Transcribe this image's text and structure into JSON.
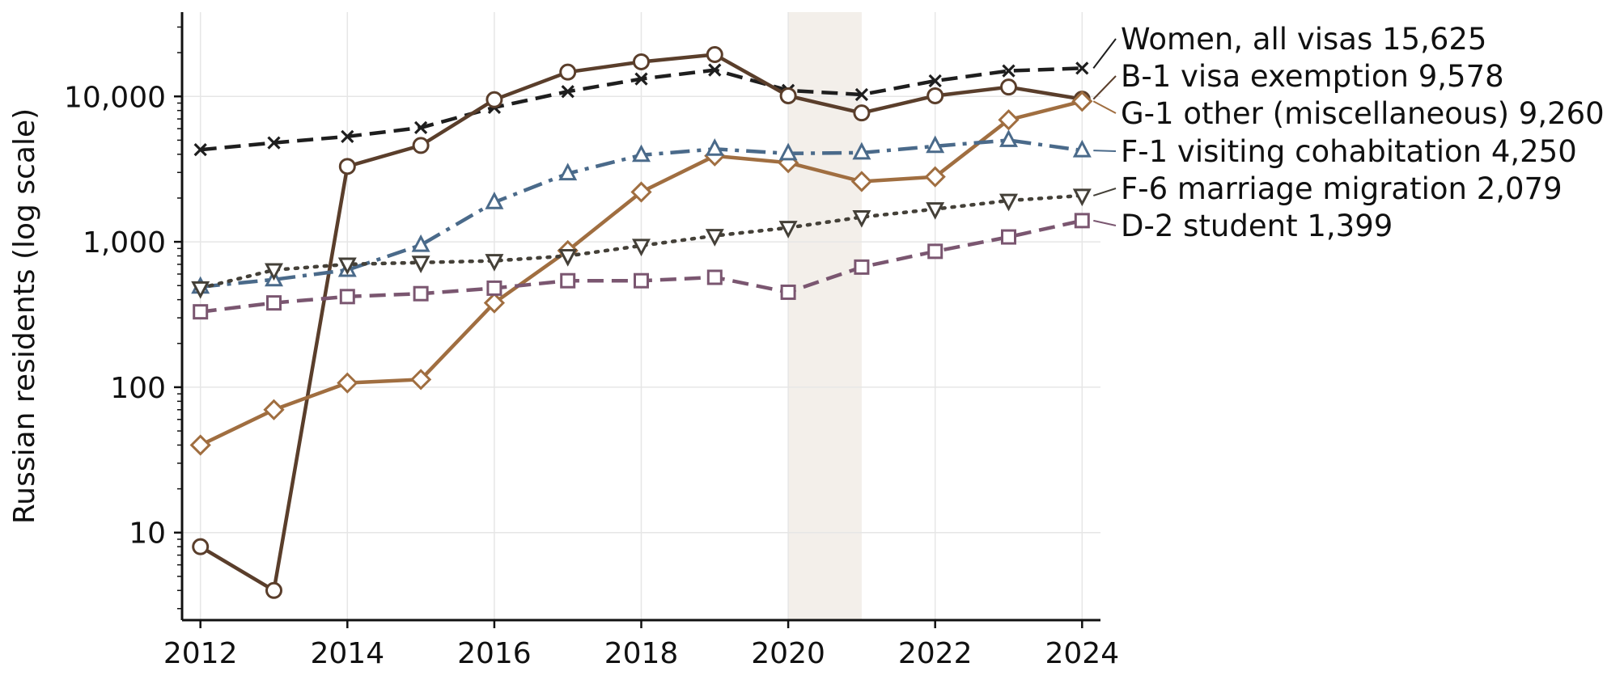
{
  "chart_data": {
    "type": "line",
    "title": "",
    "xlabel": "",
    "ylabel": "Russian residents (log scale)",
    "yscale": "log",
    "xlim": [
      2011.75,
      2024.25
    ],
    "ylim": [
      2.5,
      38000
    ],
    "x_ticks": [
      2012,
      2014,
      2016,
      2018,
      2020,
      2022,
      2024
    ],
    "x_tick_labels": [
      "2012",
      "2014",
      "2016",
      "2018",
      "2020",
      "2022",
      "2024"
    ],
    "y_ticks": [
      10,
      100,
      1000,
      10000
    ],
    "y_tick_labels": [
      "10",
      "100",
      "1,000",
      "10,000"
    ],
    "grid": true,
    "shaded_region": [
      2020,
      2021
    ],
    "shade_color": "#f3efea",
    "x": [
      2012,
      2013,
      2014,
      2015,
      2016,
      2017,
      2018,
      2019,
      2020,
      2021,
      2022,
      2023,
      2024
    ],
    "legend": "direct end-of-line labels, right",
    "series": [
      {
        "name": "Women, all visas",
        "value_label": "15,625",
        "color": "#1e1e1e",
        "marker": "x",
        "line_style": "dashed",
        "values": [
          4300,
          4800,
          5300,
          6100,
          8400,
          10800,
          13200,
          15200,
          11000,
          10300,
          12800,
          15000,
          15625
        ]
      },
      {
        "name": "B-1 visa exemption",
        "value_label": "9,578",
        "color": "#5a3e2b",
        "marker": "circle",
        "line_style": "solid",
        "values": [
          8,
          4,
          3300,
          4600,
          9500,
          14700,
          17300,
          19400,
          10100,
          7700,
          10100,
          11600,
          9578
        ]
      },
      {
        "name": "G-1 other (miscellaneous)",
        "value_label": "9,260",
        "color": "#a06e40",
        "marker": "diamond",
        "line_style": "solid",
        "values": [
          40,
          70,
          107,
          113,
          380,
          870,
          2200,
          3900,
          3500,
          2600,
          2800,
          6900,
          9260
        ]
      },
      {
        "name": "F-1 visiting cohabitation",
        "value_label": "4,250",
        "color": "#4a6a8a",
        "marker": "triangle-up",
        "line_style": "dashdot",
        "values": [
          490,
          550,
          640,
          950,
          1870,
          2950,
          3950,
          4350,
          4050,
          4100,
          4550,
          5000,
          4250
        ]
      },
      {
        "name": "F-6 marriage migration",
        "value_label": "2,079",
        "color": "#444038",
        "marker": "triangle-down",
        "line_style": "dotted",
        "values": [
          480,
          640,
          700,
          720,
          740,
          800,
          940,
          1100,
          1250,
          1480,
          1680,
          1920,
          2079
        ]
      },
      {
        "name": "D-2 student",
        "value_label": "1,399",
        "color": "#7a5670",
        "marker": "square",
        "line_style": "dashed",
        "values": [
          330,
          380,
          420,
          440,
          480,
          540,
          540,
          570,
          450,
          670,
          860,
          1080,
          1399
        ]
      }
    ]
  }
}
